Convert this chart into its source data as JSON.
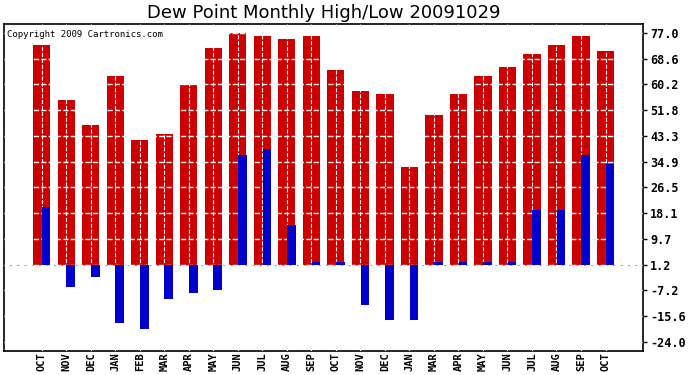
{
  "title": "Dew Point Monthly High/Low 20091029",
  "copyright": "Copyright 2009 Cartronics.com",
  "months": [
    "OCT",
    "NOV",
    "DEC",
    "JAN",
    "FEB",
    "MAR",
    "APR",
    "MAY",
    "JUN",
    "JUL",
    "AUG",
    "SEP",
    "OCT",
    "NOV",
    "DEC",
    "JAN",
    "MAR",
    "APR",
    "MAY",
    "JUN",
    "JUL",
    "AUG",
    "SEP",
    "OCT"
  ],
  "highs": [
    73,
    55,
    47,
    63,
    42,
    44,
    60,
    72,
    77,
    76,
    75,
    76,
    65,
    58,
    57,
    33,
    50,
    57,
    63,
    66,
    70,
    73,
    76,
    71
  ],
  "lows": [
    20,
    -6,
    -3,
    -18,
    -20,
    -10,
    -8,
    -7,
    37,
    39,
    14,
    2,
    2,
    -12,
    -17,
    -17,
    2,
    2,
    2,
    2,
    19,
    19,
    37,
    34
  ],
  "high_color": "#cc0000",
  "low_color": "#0000cc",
  "bg_color": "#ffffff",
  "plot_bg": "#ffffff",
  "yticks": [
    -24.0,
    -15.6,
    -7.2,
    1.2,
    9.7,
    18.1,
    26.5,
    34.9,
    43.3,
    51.8,
    60.2,
    68.6,
    77.0
  ],
  "ylim": [
    -27,
    80
  ],
  "red_bar_width": 0.7,
  "blue_bar_width": 0.35,
  "title_fontsize": 13,
  "tick_fontsize": 8.5,
  "xlabel_fontsize": 7.5
}
